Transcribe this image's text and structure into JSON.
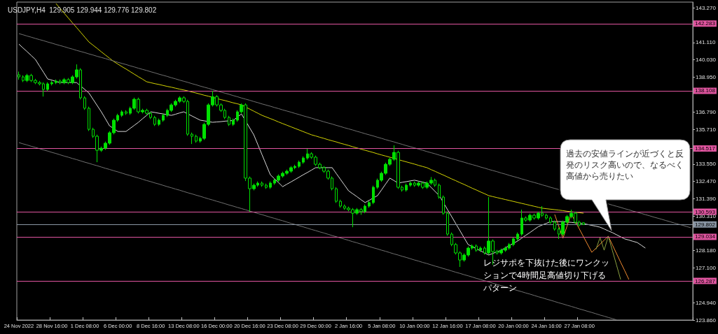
{
  "chart_data": {
    "type": "candlestick",
    "title": "USDJPY,H4  129.905 129.944 129.776 129.802",
    "color": "#00e000",
    "categories": [
      "24 Nov 2022",
      null,
      null,
      null,
      null,
      null,
      null,
      null,
      "28 Nov 16:00",
      null,
      null,
      null,
      null,
      null,
      null,
      null,
      "1 Dec 08:00",
      null,
      null,
      null,
      null,
      null,
      null,
      null,
      "6 Dec 00:00",
      null,
      null,
      null,
      null,
      null,
      null,
      null,
      "8 Dec 16:00",
      null,
      null,
      null,
      null,
      null,
      null,
      null,
      "13 Dec 08:00",
      null,
      null,
      null,
      null,
      null,
      null,
      null,
      "16 Dec 00:00",
      null,
      null,
      null,
      null,
      null,
      null,
      null,
      "20 Dec 16:00",
      null,
      null,
      null,
      null,
      null,
      null,
      null,
      "23 Dec 08:00",
      null,
      null,
      null,
      null,
      null,
      null,
      null,
      "29 Dec 00:00",
      null,
      null,
      null,
      null,
      null,
      null,
      null,
      "2 Jan 16:00",
      null,
      null,
      null,
      null,
      null,
      null,
      null,
      "5 Jan 08:00",
      null,
      null,
      null,
      null,
      null,
      null,
      null,
      "10 Jan 00:00",
      null,
      null,
      null,
      null,
      null,
      null,
      null,
      "12 Jan 16:00",
      null,
      null,
      null,
      null,
      null,
      null,
      null,
      "17 Jan 08:00",
      null,
      null,
      null,
      null,
      null,
      null,
      null,
      "20 Jan 00:00",
      null,
      null,
      null,
      null,
      null,
      null,
      null,
      "24 Jan 16:00",
      null,
      null,
      null,
      null,
      null,
      null,
      null,
      "27 Jan 08:00",
      null,
      null,
      null,
      null,
      null,
      null,
      null,
      null,
      null,
      null,
      null,
      null,
      null,
      null,
      null,
      null,
      null,
      null,
      null,
      null,
      null,
      null,
      null,
      null,
      null,
      null,
      null
    ],
    "ohlc": [
      [
        139.1,
        139.3,
        138.8,
        138.97
      ],
      [
        138.97,
        139.07,
        138.65,
        138.75
      ],
      [
        138.75,
        139.16,
        138.65,
        139.06
      ],
      [
        139.06,
        139.16,
        138.65,
        138.75
      ],
      [
        138.75,
        138.85,
        138.52,
        138.62
      ],
      [
        138.62,
        138.72,
        138.44,
        138.54
      ],
      [
        138.54,
        138.64,
        137.75,
        138.19
      ],
      [
        138.19,
        138.64,
        138.09,
        138.54
      ],
      [
        138.54,
        138.72,
        138.44,
        138.62
      ],
      [
        138.62,
        138.81,
        138.52,
        138.71
      ],
      [
        138.71,
        138.81,
        138.52,
        138.62
      ],
      [
        138.62,
        138.9,
        138.52,
        138.8
      ],
      [
        138.8,
        138.9,
        138.52,
        138.62
      ],
      [
        138.62,
        139.07,
        138.52,
        138.97
      ],
      [
        138.97,
        139.75,
        138.87,
        139.41
      ],
      [
        139.41,
        139.51,
        137.57,
        137.67
      ],
      [
        137.67,
        137.77,
        136.92,
        137.02
      ],
      [
        137.02,
        137.12,
        135.61,
        135.71
      ],
      [
        135.71,
        135.81,
        135.18,
        135.28
      ],
      [
        135.28,
        135.38,
        133.67,
        134.41
      ],
      [
        134.41,
        134.64,
        134.31,
        134.54
      ],
      [
        134.54,
        134.95,
        134.44,
        134.85
      ],
      [
        134.85,
        135.6,
        134.75,
        135.5
      ],
      [
        135.5,
        136.38,
        135.4,
        136.28
      ],
      [
        136.28,
        136.68,
        136.18,
        136.58
      ],
      [
        136.58,
        136.9,
        136.48,
        136.8
      ],
      [
        136.8,
        136.9,
        136.61,
        136.71
      ],
      [
        136.71,
        137.12,
        136.61,
        137.02
      ],
      [
        137.02,
        137.68,
        136.92,
        137.58
      ],
      [
        137.58,
        137.68,
        136.7,
        136.8
      ],
      [
        136.8,
        136.99,
        136.7,
        136.89
      ],
      [
        136.89,
        136.99,
        136.61,
        136.71
      ],
      [
        136.71,
        136.81,
        136.35,
        136.45
      ],
      [
        136.45,
        136.55,
        135.92,
        136.02
      ],
      [
        136.02,
        136.38,
        135.92,
        136.28
      ],
      [
        136.28,
        136.68,
        136.18,
        136.58
      ],
      [
        136.58,
        136.99,
        136.48,
        136.89
      ],
      [
        136.89,
        137.33,
        136.79,
        137.23
      ],
      [
        137.23,
        137.55,
        137.13,
        137.45
      ],
      [
        137.45,
        137.77,
        137.35,
        137.67
      ],
      [
        137.67,
        137.77,
        137.35,
        137.45
      ],
      [
        137.45,
        137.55,
        135.31,
        135.41
      ],
      [
        135.41,
        135.51,
        134.8,
        135.28
      ],
      [
        135.28,
        135.38,
        134.88,
        134.98
      ],
      [
        134.98,
        135.25,
        134.88,
        135.15
      ],
      [
        135.15,
        136.12,
        135.05,
        136.02
      ],
      [
        136.02,
        137.33,
        135.92,
        137.23
      ],
      [
        137.23,
        138.1,
        137.13,
        137.74
      ],
      [
        137.74,
        137.84,
        137.13,
        137.23
      ],
      [
        137.23,
        137.33,
        136.79,
        136.89
      ],
      [
        136.89,
        136.99,
        136.35,
        136.45
      ],
      [
        136.45,
        136.55,
        135.92,
        136.02
      ],
      [
        136.02,
        136.38,
        135.92,
        136.28
      ],
      [
        136.28,
        136.9,
        136.18,
        136.8
      ],
      [
        136.8,
        137.32,
        136.7,
        137.23
      ],
      [
        137.23,
        137.33,
        132.5,
        132.68
      ],
      [
        132.68,
        132.78,
        130.6,
        132.02
      ],
      [
        132.02,
        132.34,
        131.92,
        132.24
      ],
      [
        132.24,
        132.47,
        132.14,
        132.37
      ],
      [
        132.37,
        132.47,
        132.14,
        132.24
      ],
      [
        132.24,
        132.34,
        132.01,
        132.11
      ],
      [
        132.11,
        132.47,
        132.01,
        132.37
      ],
      [
        132.37,
        132.65,
        132.27,
        132.55
      ],
      [
        132.55,
        132.91,
        132.45,
        132.81
      ],
      [
        132.81,
        133.08,
        132.71,
        132.98
      ],
      [
        132.98,
        133.21,
        132.88,
        133.11
      ],
      [
        133.11,
        133.43,
        133.01,
        133.33
      ],
      [
        133.33,
        133.51,
        133.23,
        133.41
      ],
      [
        133.41,
        133.77,
        133.31,
        133.67
      ],
      [
        133.67,
        134.03,
        133.57,
        133.93
      ],
      [
        133.93,
        134.5,
        133.83,
        134.19
      ],
      [
        134.19,
        134.29,
        133.88,
        133.98
      ],
      [
        133.98,
        134.08,
        133.44,
        133.54
      ],
      [
        133.54,
        133.64,
        133.23,
        133.33
      ],
      [
        133.33,
        133.43,
        133.01,
        133.11
      ],
      [
        133.11,
        133.21,
        132.58,
        132.68
      ],
      [
        132.68,
        132.78,
        131.92,
        132.02
      ],
      [
        132.02,
        132.12,
        131.14,
        131.24
      ],
      [
        131.24,
        131.34,
        130.84,
        130.94
      ],
      [
        130.94,
        131.04,
        130.71,
        130.81
      ],
      [
        130.81,
        130.91,
        130.62,
        130.72
      ],
      [
        130.72,
        130.82,
        129.63,
        130.5
      ],
      [
        130.5,
        130.82,
        130.4,
        130.72
      ],
      [
        130.72,
        130.82,
        130.4,
        130.6
      ],
      [
        130.6,
        131.04,
        130.5,
        130.94
      ],
      [
        130.94,
        131.26,
        130.84,
        131.16
      ],
      [
        131.16,
        132.21,
        131.06,
        132.11
      ],
      [
        132.11,
        132.65,
        132.01,
        132.55
      ],
      [
        132.55,
        133.08,
        132.45,
        132.98
      ],
      [
        132.98,
        133.64,
        132.88,
        133.54
      ],
      [
        133.54,
        133.95,
        133.44,
        133.85
      ],
      [
        133.85,
        134.72,
        133.75,
        134.28
      ],
      [
        134.28,
        134.38,
        132.01,
        132.11
      ],
      [
        132.11,
        132.21,
        131.84,
        131.94
      ],
      [
        131.94,
        132.34,
        131.84,
        132.24
      ],
      [
        132.24,
        132.47,
        132.14,
        132.37
      ],
      [
        132.37,
        132.47,
        132.14,
        132.24
      ],
      [
        132.24,
        132.47,
        132.14,
        132.37
      ],
      [
        132.37,
        132.47,
        132.01,
        132.11
      ],
      [
        132.11,
        132.47,
        132.01,
        132.37
      ],
      [
        132.37,
        132.75,
        132.27,
        132.55
      ],
      [
        132.55,
        132.65,
        132.14,
        132.24
      ],
      [
        132.24,
        132.34,
        131.4,
        131.5
      ],
      [
        131.5,
        131.6,
        130.4,
        130.5
      ],
      [
        130.5,
        130.6,
        129.1,
        129.2
      ],
      [
        129.2,
        129.3,
        128.45,
        128.55
      ],
      [
        128.55,
        128.65,
        127.93,
        128.03
      ],
      [
        128.03,
        128.13,
        127.16,
        127.59
      ],
      [
        127.59,
        128.0,
        127.49,
        127.9
      ],
      [
        127.9,
        128.43,
        127.8,
        128.33
      ],
      [
        128.33,
        128.56,
        128.23,
        128.46
      ],
      [
        128.46,
        128.56,
        128.1,
        128.2
      ],
      [
        128.2,
        128.43,
        128.1,
        128.33
      ],
      [
        128.33,
        128.43,
        127.93,
        128.03
      ],
      [
        128.03,
        131.5,
        127.93,
        128.77
      ],
      [
        128.77,
        128.87,
        127.3,
        128.12
      ],
      [
        128.12,
        128.22,
        127.93,
        128.03
      ],
      [
        128.03,
        128.3,
        127.93,
        128.2
      ],
      [
        128.2,
        128.43,
        128.1,
        128.33
      ],
      [
        128.33,
        128.65,
        128.23,
        128.55
      ],
      [
        128.55,
        129.0,
        128.45,
        128.9
      ],
      [
        128.9,
        129.3,
        128.8,
        129.2
      ],
      [
        129.2,
        130.72,
        129.1,
        130.2
      ],
      [
        130.2,
        130.3,
        129.97,
        130.07
      ],
      [
        130.07,
        130.47,
        129.97,
        130.37
      ],
      [
        130.37,
        130.47,
        130.1,
        130.2
      ],
      [
        130.2,
        130.6,
        130.1,
        130.5
      ],
      [
        130.5,
        130.94,
        130.27,
        130.37
      ],
      [
        130.37,
        130.47,
        130.1,
        130.2
      ],
      [
        130.2,
        130.3,
        129.84,
        129.94
      ],
      [
        129.94,
        130.04,
        129.41,
        129.51
      ],
      [
        129.51,
        129.61,
        128.9,
        129.2
      ],
      [
        129.2,
        130.04,
        129.1,
        129.94
      ],
      [
        129.94,
        130.39,
        129.84,
        130.29
      ],
      [
        130.29,
        130.72,
        130.19,
        130.5
      ],
      [
        130.5,
        130.6,
        129.84,
        129.94
      ],
      [
        129.94,
        130.04,
        129.67,
        129.77
      ],
      [
        129.905,
        129.944,
        129.776,
        129.802
      ],
      null,
      null,
      null,
      null,
      null,
      null,
      null,
      null,
      null,
      null,
      null,
      null,
      null,
      null,
      null,
      null,
      null,
      null,
      null,
      null,
      null,
      null,
      null,
      null,
      null,
      null
    ],
    "series": [
      {
        "type": "line",
        "color": "#d8d8d8",
        "values": [
          141.01,
          140.77,
          140.54,
          140.3,
          140.06,
          139.65,
          139.25,
          138.84,
          138.77,
          138.69,
          138.62,
          138.62,
          138.62,
          138.62,
          138.62,
          138.4,
          138.19,
          137.97,
          137.58,
          137.19,
          136.8,
          136.37,
          135.93,
          135.76,
          135.58,
          135.58,
          135.58,
          135.77,
          135.96,
          136.15,
          136.37,
          136.58,
          136.8,
          136.76,
          136.71,
          136.67,
          136.62,
          136.58,
          136.65,
          136.73,
          136.8,
          136.67,
          136.54,
          136.41,
          136.28,
          136.24,
          136.19,
          136.15,
          136.17,
          136.19,
          136.22,
          136.24,
          136.26,
          136.47,
          136.67,
          136.24,
          135.8,
          135.37,
          134.75,
          134.13,
          133.51,
          132.89,
          132.64,
          132.4,
          132.15,
          132.3,
          132.44,
          132.59,
          132.74,
          132.89,
          133.03,
          133.18,
          133.33,
          133.33,
          133.33,
          133.33,
          133.33,
          132.97,
          132.61,
          132.25,
          131.89,
          131.71,
          131.53,
          131.34,
          131.16,
          131.3,
          131.45,
          131.59,
          131.95,
          132.32,
          132.68,
          132.53,
          132.37,
          132.42,
          132.46,
          132.51,
          132.55,
          132.49,
          132.43,
          132.37,
          132.11,
          131.85,
          131.59,
          131.16,
          130.72,
          130.29,
          129.85,
          129.42,
          128.98,
          128.55,
          128.42,
          128.29,
          128.16,
          128.03,
          127.9,
          128.0,
          128.1,
          128.2,
          128.34,
          128.49,
          128.63,
          128.77,
          128.95,
          129.13,
          129.3,
          129.48,
          129.66,
          129.77,
          129.87,
          129.98,
          129.98,
          129.98,
          129.98,
          129.95,
          129.93,
          129.9,
          129.88,
          129.85,
          129.8,
          129.74,
          129.69,
          129.63,
          129.52,
          129.4,
          129.29,
          129.16,
          129.03,
          128.9,
          128.83,
          128.75,
          128.68,
          128.51,
          128.33,
          null,
          null,
          null,
          null,
          null,
          null,
          null,
          null,
          null,
          null,
          null
        ]
      },
      {
        "type": "line",
        "color": "#d4d400",
        "values": [
          null,
          null,
          null,
          null,
          null,
          null,
          null,
          null,
          null,
          143.53,
          143.23,
          142.93,
          142.63,
          142.33,
          142.04,
          141.74,
          141.44,
          141.14,
          140.94,
          140.74,
          140.53,
          140.33,
          140.13,
          139.93,
          139.77,
          139.61,
          139.46,
          139.3,
          139.14,
          138.98,
          138.83,
          138.67,
          138.61,
          138.55,
          138.5,
          138.44,
          138.38,
          138.33,
          138.27,
          138.21,
          138.16,
          138.1,
          138.03,
          137.97,
          137.9,
          137.83,
          137.77,
          137.7,
          137.63,
          137.56,
          137.5,
          137.43,
          137.36,
          137.3,
          137.23,
          137.1,
          136.97,
          136.84,
          136.71,
          136.58,
          136.48,
          136.38,
          136.28,
          136.17,
          136.07,
          135.97,
          135.87,
          135.77,
          135.67,
          135.57,
          135.47,
          135.37,
          135.3,
          135.22,
          135.15,
          135.07,
          135.0,
          134.93,
          134.85,
          134.78,
          134.71,
          134.63,
          134.56,
          134.48,
          134.41,
          134.34,
          134.27,
          134.19,
          134.12,
          134.05,
          133.98,
          133.91,
          133.83,
          133.76,
          133.69,
          133.62,
          133.55,
          133.47,
          133.4,
          133.33,
          133.21,
          133.1,
          132.98,
          132.87,
          132.75,
          132.63,
          132.52,
          132.4,
          132.29,
          132.17,
          132.05,
          131.94,
          131.82,
          131.71,
          131.59,
          131.53,
          131.47,
          131.41,
          131.35,
          131.29,
          131.23,
          131.17,
          131.11,
          131.05,
          130.99,
          130.93,
          130.87,
          130.81,
          130.78,
          130.75,
          130.72,
          130.69,
          130.66,
          130.62,
          130.59,
          130.56,
          130.53,
          130.5,
          null,
          null,
          null,
          null,
          null,
          null,
          null,
          null,
          null,
          null,
          null,
          null,
          null,
          null,
          null,
          null,
          null,
          null,
          null,
          null,
          null,
          null,
          null,
          null,
          null,
          null
        ]
      },
      {
        "type": "line",
        "color": "#f08a30",
        "values": [
          null,
          null,
          null,
          null,
          null,
          null,
          null,
          null,
          null,
          null,
          null,
          null,
          null,
          null,
          null,
          null,
          null,
          null,
          null,
          null,
          null,
          null,
          null,
          null,
          null,
          null,
          null,
          null,
          null,
          null,
          null,
          null,
          null,
          null,
          null,
          null,
          null,
          null,
          null,
          null,
          null,
          null,
          null,
          null,
          null,
          null,
          null,
          null,
          null,
          null,
          null,
          null,
          null,
          null,
          null,
          null,
          null,
          null,
          null,
          null,
          null,
          null,
          null,
          null,
          null,
          null,
          null,
          null,
          null,
          null,
          null,
          null,
          null,
          null,
          null,
          null,
          null,
          null,
          null,
          null,
          null,
          null,
          null,
          null,
          null,
          null,
          null,
          null,
          null,
          null,
          null,
          null,
          null,
          null,
          null,
          null,
          null,
          null,
          null,
          null,
          null,
          null,
          null,
          null,
          null,
          null,
          null,
          null,
          null,
          null,
          null,
          null,
          null,
          null,
          null,
          null,
          null,
          null,
          null,
          null,
          null,
          null,
          null,
          null,
          null,
          null,
          null,
          null,
          null,
          null,
          130.42,
          129.68,
          128.94,
          129.7,
          130.46,
          129.98,
          129.51,
          129.03,
          128.55,
          128.07,
          128.32,
          128.57,
          128.82,
          129.07,
          128.53,
          127.99,
          127.45,
          126.92,
          126.38,
          null,
          null,
          null,
          null,
          null,
          null,
          null,
          null,
          null,
          null,
          null,
          null,
          null,
          null,
          null
        ]
      },
      {
        "type": "line",
        "color": "#8aa040",
        "values": [
          null,
          null,
          null,
          null,
          null,
          null,
          null,
          null,
          null,
          null,
          null,
          null,
          null,
          null,
          null,
          null,
          null,
          null,
          null,
          null,
          null,
          null,
          null,
          null,
          null,
          null,
          null,
          null,
          null,
          null,
          null,
          null,
          null,
          null,
          null,
          null,
          null,
          null,
          null,
          null,
          null,
          null,
          null,
          null,
          null,
          null,
          null,
          null,
          null,
          null,
          null,
          null,
          null,
          null,
          null,
          null,
          null,
          null,
          null,
          null,
          null,
          null,
          null,
          null,
          null,
          null,
          null,
          null,
          null,
          null,
          null,
          null,
          null,
          null,
          null,
          null,
          null,
          null,
          null,
          null,
          null,
          null,
          null,
          null,
          null,
          null,
          null,
          null,
          null,
          null,
          null,
          null,
          null,
          null,
          null,
          null,
          null,
          null,
          null,
          null,
          null,
          null,
          null,
          null,
          null,
          null,
          null,
          null,
          null,
          null,
          null,
          null,
          null,
          null,
          null,
          null,
          null,
          null,
          null,
          null,
          null,
          null,
          null,
          null,
          null,
          null,
          null,
          null,
          null,
          null,
          null,
          null,
          null,
          null,
          null,
          null,
          null,
          null,
          null,
          null,
          128.25,
          128.98,
          128.2,
          129.07,
          128.17,
          127.28,
          126.38,
          null,
          null,
          null,
          null,
          null,
          null,
          null,
          null,
          null,
          null,
          null,
          null,
          null,
          null,
          null,
          null,
          null
        ]
      },
      {
        "type": "line",
        "color": "#707070",
        "values": [
          141.66,
          141.59,
          141.51,
          141.44,
          141.36,
          141.29,
          141.22,
          141.14,
          141.07,
          140.99,
          140.92,
          140.85,
          140.77,
          140.7,
          140.62,
          140.55,
          140.48,
          140.4,
          140.33,
          140.25,
          140.18,
          140.11,
          140.03,
          139.96,
          139.88,
          139.81,
          139.74,
          139.66,
          139.59,
          139.51,
          139.44,
          139.37,
          139.29,
          139.22,
          139.14,
          139.07,
          139.0,
          138.92,
          138.85,
          138.77,
          138.7,
          138.63,
          138.55,
          138.48,
          138.4,
          138.33,
          138.26,
          138.18,
          138.11,
          138.03,
          137.96,
          137.89,
          137.81,
          137.74,
          137.66,
          137.59,
          137.52,
          137.44,
          137.37,
          137.29,
          137.22,
          137.15,
          137.07,
          137.0,
          136.92,
          136.85,
          136.78,
          136.7,
          136.63,
          136.55,
          136.48,
          136.41,
          136.33,
          136.26,
          136.18,
          136.11,
          136.04,
          135.96,
          135.89,
          135.81,
          135.74,
          135.67,
          135.59,
          135.52,
          135.44,
          135.37,
          135.3,
          135.22,
          135.15,
          135.07,
          135.0,
          134.93,
          134.85,
          134.78,
          134.7,
          134.63,
          134.56,
          134.48,
          134.41,
          134.33,
          134.26,
          134.19,
          134.11,
          134.04,
          133.96,
          133.89,
          133.82,
          133.74,
          133.67,
          133.59,
          133.52,
          133.45,
          133.37,
          133.3,
          133.22,
          133.15,
          133.08,
          133.0,
          132.93,
          132.85,
          132.78,
          132.71,
          132.63,
          132.56,
          132.48,
          132.41,
          132.34,
          132.26,
          132.19,
          132.11,
          132.04,
          131.97,
          null,
          null,
          null,
          null,
          null,
          null,
          null,
          null,
          null,
          null,
          null,
          131.08,
          131.0,
          130.93,
          130.86,
          130.78,
          130.71,
          130.63,
          130.56,
          130.49,
          130.41,
          130.34,
          130.26,
          130.19,
          130.12,
          130.04,
          129.97,
          129.89,
          129.82,
          129.75,
          129.67,
          129.6
        ]
      },
      {
        "type": "line",
        "color": "#707070",
        "values": [
          134.89,
          134.81,
          134.74,
          134.66,
          134.59,
          134.51,
          134.43,
          134.36,
          134.28,
          134.21,
          134.13,
          134.05,
          133.98,
          133.9,
          133.83,
          133.75,
          133.67,
          133.6,
          133.52,
          133.45,
          133.37,
          133.29,
          133.22,
          133.14,
          133.07,
          132.99,
          132.91,
          132.84,
          132.76,
          132.69,
          132.61,
          132.53,
          132.46,
          132.38,
          132.31,
          132.23,
          132.15,
          132.08,
          132.0,
          131.93,
          131.85,
          131.77,
          131.7,
          131.62,
          131.55,
          131.47,
          131.39,
          131.32,
          131.24,
          131.17,
          131.09,
          131.01,
          130.94,
          130.86,
          130.79,
          130.71,
          130.63,
          130.56,
          130.48,
          130.41,
          130.33,
          130.25,
          130.18,
          130.1,
          130.03,
          129.95,
          129.87,
          129.8,
          129.72,
          129.65,
          129.57,
          129.49,
          129.42,
          129.34,
          129.27,
          129.19,
          129.11,
          129.04,
          128.96,
          128.89,
          128.81,
          128.73,
          128.66,
          128.58,
          128.51,
          128.43,
          128.35,
          128.28,
          128.2,
          128.13,
          128.05,
          127.97,
          127.9,
          127.82,
          127.75,
          127.67,
          127.59,
          127.52,
          127.44,
          127.37,
          127.29,
          127.21,
          127.14,
          127.06,
          126.99,
          126.91,
          126.83,
          126.76,
          126.68,
          126.61,
          126.53,
          126.45,
          126.38,
          126.3,
          126.23,
          126.15,
          126.07,
          126.0,
          125.92,
          125.85,
          125.77,
          125.69,
          125.62,
          125.54,
          125.47,
          125.39,
          125.31,
          125.24,
          125.16,
          125.09,
          125.01,
          124.93,
          124.86,
          124.78,
          124.71,
          124.63,
          124.55,
          124.48,
          124.4,
          124.33,
          124.25,
          124.17,
          124.1,
          124.02,
          123.95,
          123.87,
          null,
          null,
          null,
          null,
          null,
          null,
          null,
          null,
          null,
          null,
          null,
          null,
          null,
          null,
          null,
          null,
          null,
          null
        ]
      }
    ],
    "ylim": [
      123.86,
      143.62
    ],
    "yticks": [
      {
        "value": 123.86,
        "label": "123.860"
      },
      {
        "value": 124.94,
        "label": "124.940"
      },
      {
        "value": 127.1,
        "label": "127.100"
      },
      {
        "value": 128.18,
        "label": "128.180"
      },
      {
        "value": 130.31,
        "label": "130.310"
      },
      {
        "value": 131.39,
        "label": "131.390"
      },
      {
        "value": 132.47,
        "label": "132.470"
      },
      {
        "value": 133.55,
        "label": "133.550"
      },
      {
        "value": 135.71,
        "label": "135.710"
      },
      {
        "value": 136.79,
        "label": "136.790"
      },
      {
        "value": 138.95,
        "label": "138.950"
      },
      {
        "value": 140.03,
        "label": "140.030"
      },
      {
        "value": 141.11,
        "label": "141.110"
      },
      {
        "value": 143.27,
        "label": "143.270"
      }
    ],
    "ref_lines": [
      {
        "axis": "y",
        "value": 142.283,
        "label": "142.283",
        "color": "#e0559f"
      },
      {
        "axis": "y",
        "value": 138.108,
        "label": "138.108",
        "color": "#e0559f"
      },
      {
        "axis": "y",
        "value": 134.517,
        "label": "134.517",
        "color": "#e0559f"
      },
      {
        "axis": "y",
        "value": 130.593,
        "label": "130.593",
        "color": "#e0559f"
      },
      {
        "axis": "y",
        "value": 129.802,
        "label": "129.802",
        "color": "#8a96a4"
      },
      {
        "axis": "y",
        "value": 129.034,
        "label": "129.034",
        "color": "#e0559f"
      },
      {
        "axis": "y",
        "value": 126.287,
        "label": "126.287",
        "color": "#e0559f"
      }
    ],
    "annotations": [
      "過去の安値ラインが近づくと反発のリスク高いので、なるべく高値から売りたい",
      "レジサポを下抜けた後にワンクッションで4時間足高値切り下げるパターン"
    ],
    "grid": false,
    "marker": "none",
    "line_style": "solid"
  }
}
